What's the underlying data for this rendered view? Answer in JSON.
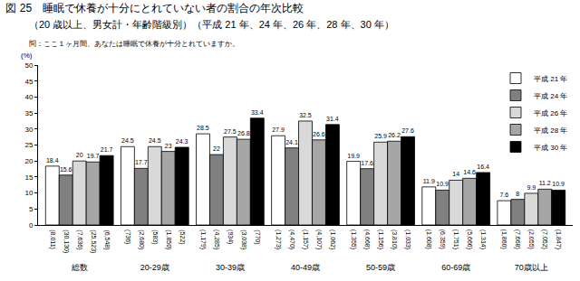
{
  "chart_data": {
    "type": "bar",
    "title": "図 25　睡眠で休養が十分にとれていない者の割合の年次比較",
    "subtitle": "（20 歳以上、男女計・年齢階級別）（平成 21 年、24 年、26 年、28 年、30 年）",
    "annotation": "問：ここ１ヶ月間、あなたは睡眠で休養が十分とれていますか。",
    "y_label": "(%)",
    "categories": [
      "総数",
      "20-29歳",
      "30-39歳",
      "40-49歳",
      "50-59歳",
      "60-69歳",
      "70歳以上"
    ],
    "series": [
      {
        "name": "平成 21 年",
        "color": "#ffffff",
        "values": [
          18.4,
          24.5,
          28.5,
          27.9,
          19.9,
          11.9,
          7.6
        ],
        "sample_size_labels": [
          "(8,011)",
          "(736)",
          "(1,179)",
          "(1,273)",
          "(1,355)",
          "(1,608)",
          "(1,860)"
        ]
      },
      {
        "name": "平成 24 年",
        "color": "#808080",
        "values": [
          15.6,
          17.7,
          22.0,
          24.1,
          17.6,
          10.9,
          8.0
        ],
        "sample_size_labels": [
          "(30,130)",
          "(2,680)",
          "(4,285)",
          "(4,470)",
          "(4,668)",
          "(6,359)",
          "(7,668)"
        ]
      },
      {
        "name": "平成 26 年",
        "color": "#d9d9d9",
        "values": [
          20.0,
          24.5,
          27.5,
          32.5,
          25.9,
          14.0,
          9.9
        ],
        "sample_size_labels": [
          "(7,636)",
          "(583)",
          "(934)",
          "(1,157)",
          "(1,156)",
          "(1,751)",
          "(2,055)"
        ]
      },
      {
        "name": "平成 28 年",
        "color": "#a6a6a6",
        "values": [
          19.7,
          23.0,
          26.8,
          26.6,
          26.2,
          14.6,
          11.2
        ],
        "sample_size_labels": [
          "(25,523)",
          "(1,850)",
          "(3,038)",
          "(4,107)",
          "(3,810)",
          "(5,666)",
          "(7,052)"
        ]
      },
      {
        "name": "平成 30 年",
        "color": "#000000",
        "values": [
          21.7,
          24.3,
          33.4,
          31.4,
          27.6,
          16.4,
          10.9
        ],
        "sample_size_labels": [
          "(6,548)",
          "(522)",
          "(770)",
          "(1,062)",
          "(1,033)",
          "(1,314)",
          "(1,847)"
        ]
      }
    ],
    "ylim": [
      0,
      50
    ],
    "yticks": [
      0,
      5,
      10,
      15,
      20,
      25,
      30,
      35,
      40,
      45,
      50
    ],
    "grid": false,
    "legend": "upper right",
    "data_labels": true
  }
}
